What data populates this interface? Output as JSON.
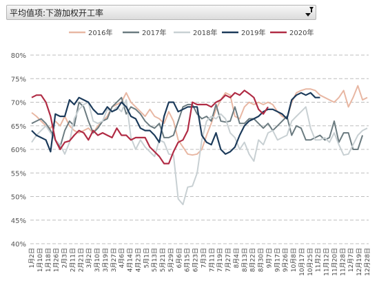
{
  "pivot_field": {
    "label": "平均值项:下游加权开工率"
  },
  "chart_data": {
    "type": "line",
    "title": "",
    "xlabel": "",
    "ylabel": "",
    "ylim": [
      40,
      80
    ],
    "yticks": [
      "40%",
      "45%",
      "50%",
      "55%",
      "60%",
      "65%",
      "70%",
      "75%",
      "80%"
    ],
    "grid": true,
    "legend": "top",
    "x_labels": [
      "1月2日",
      "1月10日",
      "1月18日",
      "1月26日",
      "2月3日",
      "2月11日",
      "2月21日",
      "3月2日",
      "3月10日",
      "3月19日",
      "3月27日",
      "4月6日",
      "4月14日",
      "4月23日",
      "5月1日",
      "5月13日",
      "5月21日",
      "5月29日",
      "6月6日",
      "6月15日",
      "6月23日",
      "7月3日",
      "7月11日",
      "7月19日",
      "7月27日",
      "8月4日",
      "8月13日",
      "8月22日",
      "8月30日",
      "9月7日",
      "9月17日",
      "9月26日",
      "10月8日",
      "10月17日",
      "10月25日",
      "11月2日",
      "11月12日",
      "11月20日",
      "11月28日",
      "12月7日",
      "12月19日",
      "12月28日"
    ],
    "x_label_every": 2,
    "series": [
      {
        "name": "2016年",
        "color": "#e8b7a3",
        "values": [
          67.8,
          67.0,
          66.0,
          65.0,
          64.5,
          66.0,
          65.0,
          67.0,
          65.0,
          64.0,
          63.5,
          64.0,
          64.5,
          63.5,
          65.0,
          66.0,
          67.0,
          69.0,
          69.5,
          70.0,
          72.0,
          70.0,
          69.0,
          68.0,
          67.0,
          68.5,
          67.0,
          66.5,
          65.5,
          68.0,
          66.0,
          62.0,
          60.5,
          59.0,
          58.8,
          59.0,
          60.0,
          63.0,
          65.5,
          68.5,
          70.5,
          72.0,
          71.5,
          67.0,
          66.5,
          69.0,
          70.0,
          69.5,
          70.0,
          69.5,
          70.0,
          69.5,
          68.0,
          67.0,
          66.5,
          70.0,
          72.0,
          72.5,
          72.8,
          72.8,
          72.5,
          71.5,
          71.0,
          70.5,
          70.0,
          71.0,
          72.5,
          69.0,
          71.0,
          73.5,
          70.5,
          71.0
        ]
      },
      {
        "name": "2017年",
        "color": "#6b7b80",
        "values": [
          65.5,
          66.0,
          66.5,
          65.5,
          64.0,
          62.0,
          60.5,
          64.0,
          66.0,
          65.0,
          70.0,
          69.0,
          66.0,
          63.5,
          64.5,
          66.0,
          66.5,
          69.0,
          70.0,
          71.0,
          67.5,
          69.0,
          68.5,
          67.5,
          66.0,
          65.0,
          64.5,
          65.5,
          62.5,
          62.5,
          63.0,
          66.0,
          69.0,
          69.5,
          69.5,
          67.5,
          66.5,
          67.0,
          66.0,
          69.5,
          66.0,
          65.8,
          66.0,
          69.0,
          65.5,
          65.5,
          66.5,
          66.5,
          65.5,
          64.5,
          65.5,
          64.0,
          65.0,
          66.0,
          67.0,
          63.0,
          65.0,
          64.5,
          62.0,
          62.0,
          62.5,
          63.0,
          62.0,
          62.5,
          66.0,
          61.5,
          63.5,
          63.5,
          60.0,
          60.0,
          63.0
        ]
      },
      {
        "name": "2018年",
        "color": "#c8d0d3",
        "values": [
          61.5,
          63.0,
          64.0,
          65.0,
          63.5,
          62.0,
          61.0,
          59.0,
          61.5,
          66.5,
          68.5,
          69.5,
          70.0,
          66.0,
          65.5,
          66.0,
          68.5,
          68.0,
          69.0,
          68.0,
          70.5,
          62.5,
          60.0,
          62.0,
          60.5,
          59.5,
          58.5,
          62.0,
          61.5,
          59.0,
          58.8,
          49.5,
          48.3,
          52.0,
          52.2,
          55.0,
          62.0,
          66.0,
          67.0,
          66.5,
          67.5,
          66.5,
          63.5,
          62.5,
          60.0,
          61.5,
          59.0,
          57.5,
          62.0,
          61.0,
          63.5,
          64.0,
          62.0,
          62.5,
          63.0,
          66.0,
          67.0,
          68.0,
          69.0,
          64.5,
          62.0,
          62.0,
          62.5,
          61.5,
          63.5,
          61.0,
          58.8,
          59.0,
          61.0,
          63.0,
          64.0,
          64.5
        ]
      },
      {
        "name": "2019年",
        "color": "#1b3a5a",
        "values": [
          64.0,
          63.0,
          62.5,
          62.0,
          59.5,
          67.5,
          67.0,
          67.0,
          70.5,
          69.5,
          71.0,
          70.5,
          70.0,
          68.5,
          67.5,
          67.5,
          69.0,
          68.0,
          68.5,
          70.0,
          69.0,
          67.0,
          66.5,
          64.5,
          64.0,
          64.0,
          63.0,
          61.5,
          67.0,
          70.0,
          70.0,
          68.0,
          68.5,
          69.0,
          69.0,
          69.0,
          63.0,
          61.5,
          61.0,
          63.5,
          60.0,
          59.0,
          59.5,
          60.5,
          63.0,
          65.0,
          66.0,
          66.5,
          67.0,
          68.0,
          68.5,
          68.5,
          68.0,
          67.5,
          66.5,
          70.5,
          71.5,
          72.0,
          71.5,
          72.0,
          71.0,
          71.0
        ]
      },
      {
        "name": "2020年",
        "color": "#b02b44",
        "values": [
          71.0,
          71.5,
          71.5,
          70.0,
          67.0,
          62.0,
          60.0,
          61.5,
          61.8,
          63.0,
          64.0,
          63.5,
          62.0,
          64.0,
          63.0,
          63.5,
          63.0,
          62.5,
          64.5,
          63.0,
          63.0,
          62.0,
          62.5,
          62.5,
          62.5,
          60.5,
          59.5,
          58.5,
          57.0,
          57.0,
          59.5,
          61.5,
          62.0,
          64.0,
          70.0,
          69.5,
          69.5,
          69.5,
          69.0,
          70.0,
          70.5,
          71.5,
          71.0,
          72.0,
          71.5,
          72.5,
          71.8,
          71.0,
          68.5,
          67.5,
          69.0
        ]
      }
    ]
  }
}
